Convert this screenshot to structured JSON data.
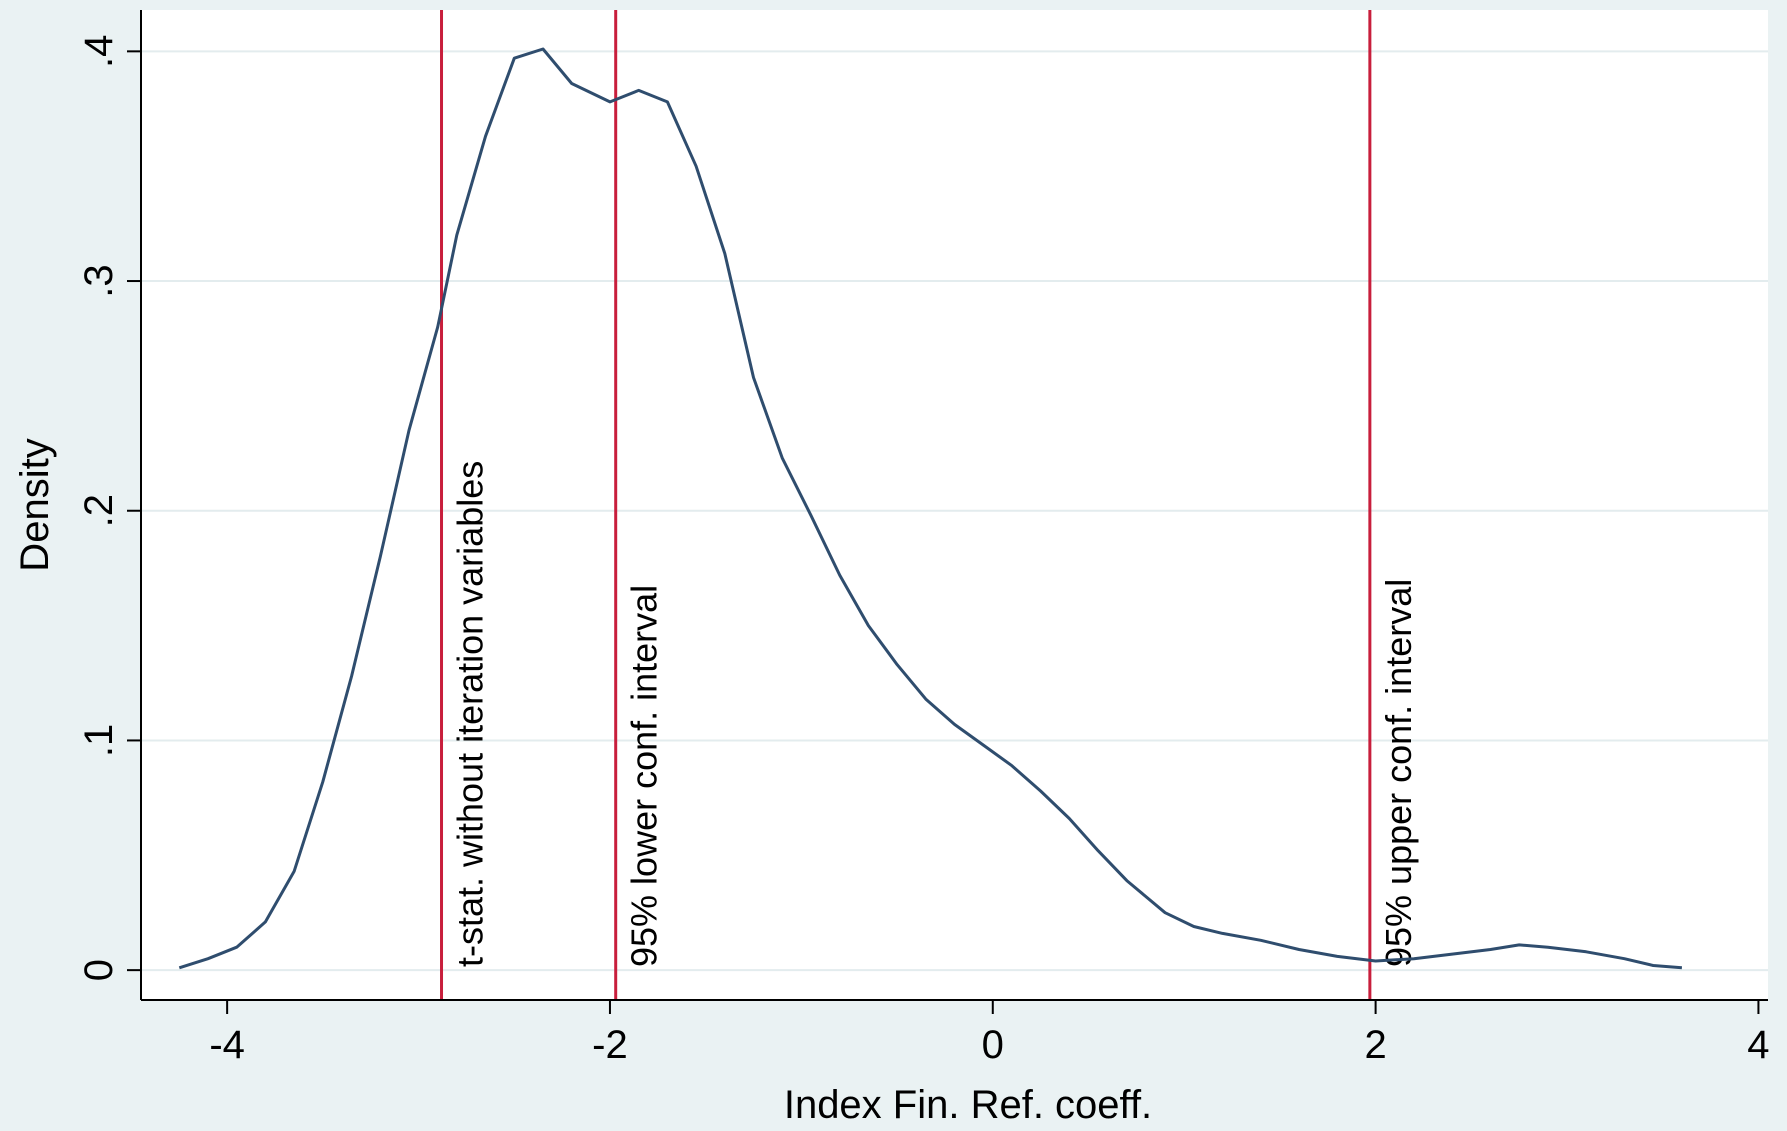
{
  "chart_data": {
    "type": "line",
    "title": "",
    "xlabel": "Index Fin. Ref. coeff.",
    "ylabel": "Density",
    "xlim": [
      -4.45,
      4.05
    ],
    "ylim": [
      -0.013,
      0.418
    ],
    "x_ticks": [
      -4,
      -2,
      0,
      2,
      4
    ],
    "x_tick_labels": [
      "-4",
      "-2",
      "0",
      "2",
      "4"
    ],
    "y_ticks": [
      0,
      0.1,
      0.2,
      0.3,
      0.4
    ],
    "y_tick_labels": [
      "0",
      ".1",
      ".2",
      ".3",
      ".4"
    ],
    "grid": true,
    "legend": "none",
    "colors": {
      "background": "#eaf2f3",
      "plot_background": "#ffffff",
      "grid": "#e3ecee",
      "curve": "#2f4d6e",
      "reference_lines": "#c81e3c"
    },
    "series": [
      {
        "x": [
          -4.25,
          -4.1,
          -3.95,
          -3.8,
          -3.65,
          -3.5,
          -3.35,
          -3.2,
          -3.05,
          -2.9,
          -2.8,
          -2.65,
          -2.5,
          -2.35,
          -2.2,
          -2.0,
          -1.85,
          -1.7,
          -1.55,
          -1.4,
          -1.25,
          -1.1,
          -0.95,
          -0.8,
          -0.65,
          -0.5,
          -0.35,
          -0.2,
          -0.05,
          0.1,
          0.25,
          0.4,
          0.55,
          0.7,
          0.9,
          1.05,
          1.2,
          1.4,
          1.6,
          1.8,
          2.0,
          2.2,
          2.4,
          2.6,
          2.75,
          2.9,
          3.1,
          3.3,
          3.45,
          3.6
        ],
        "y": [
          0.001,
          0.005,
          0.01,
          0.021,
          0.043,
          0.082,
          0.128,
          0.18,
          0.235,
          0.28,
          0.32,
          0.363,
          0.397,
          0.401,
          0.386,
          0.378,
          0.383,
          0.378,
          0.35,
          0.312,
          0.258,
          0.223,
          0.198,
          0.172,
          0.15,
          0.133,
          0.118,
          0.107,
          0.098,
          0.089,
          0.078,
          0.066,
          0.052,
          0.039,
          0.025,
          0.019,
          0.016,
          0.013,
          0.009,
          0.006,
          0.004,
          0.005,
          0.007,
          0.009,
          0.011,
          0.01,
          0.008,
          0.005,
          0.002,
          0.001
        ]
      }
    ],
    "reference_lines": [
      {
        "x": -2.88,
        "label": "t-stat. without iteration variables"
      },
      {
        "x": -1.97,
        "label": "95% lower conf. interval"
      },
      {
        "x": 1.97,
        "label": "95% upper conf. interval"
      }
    ]
  }
}
